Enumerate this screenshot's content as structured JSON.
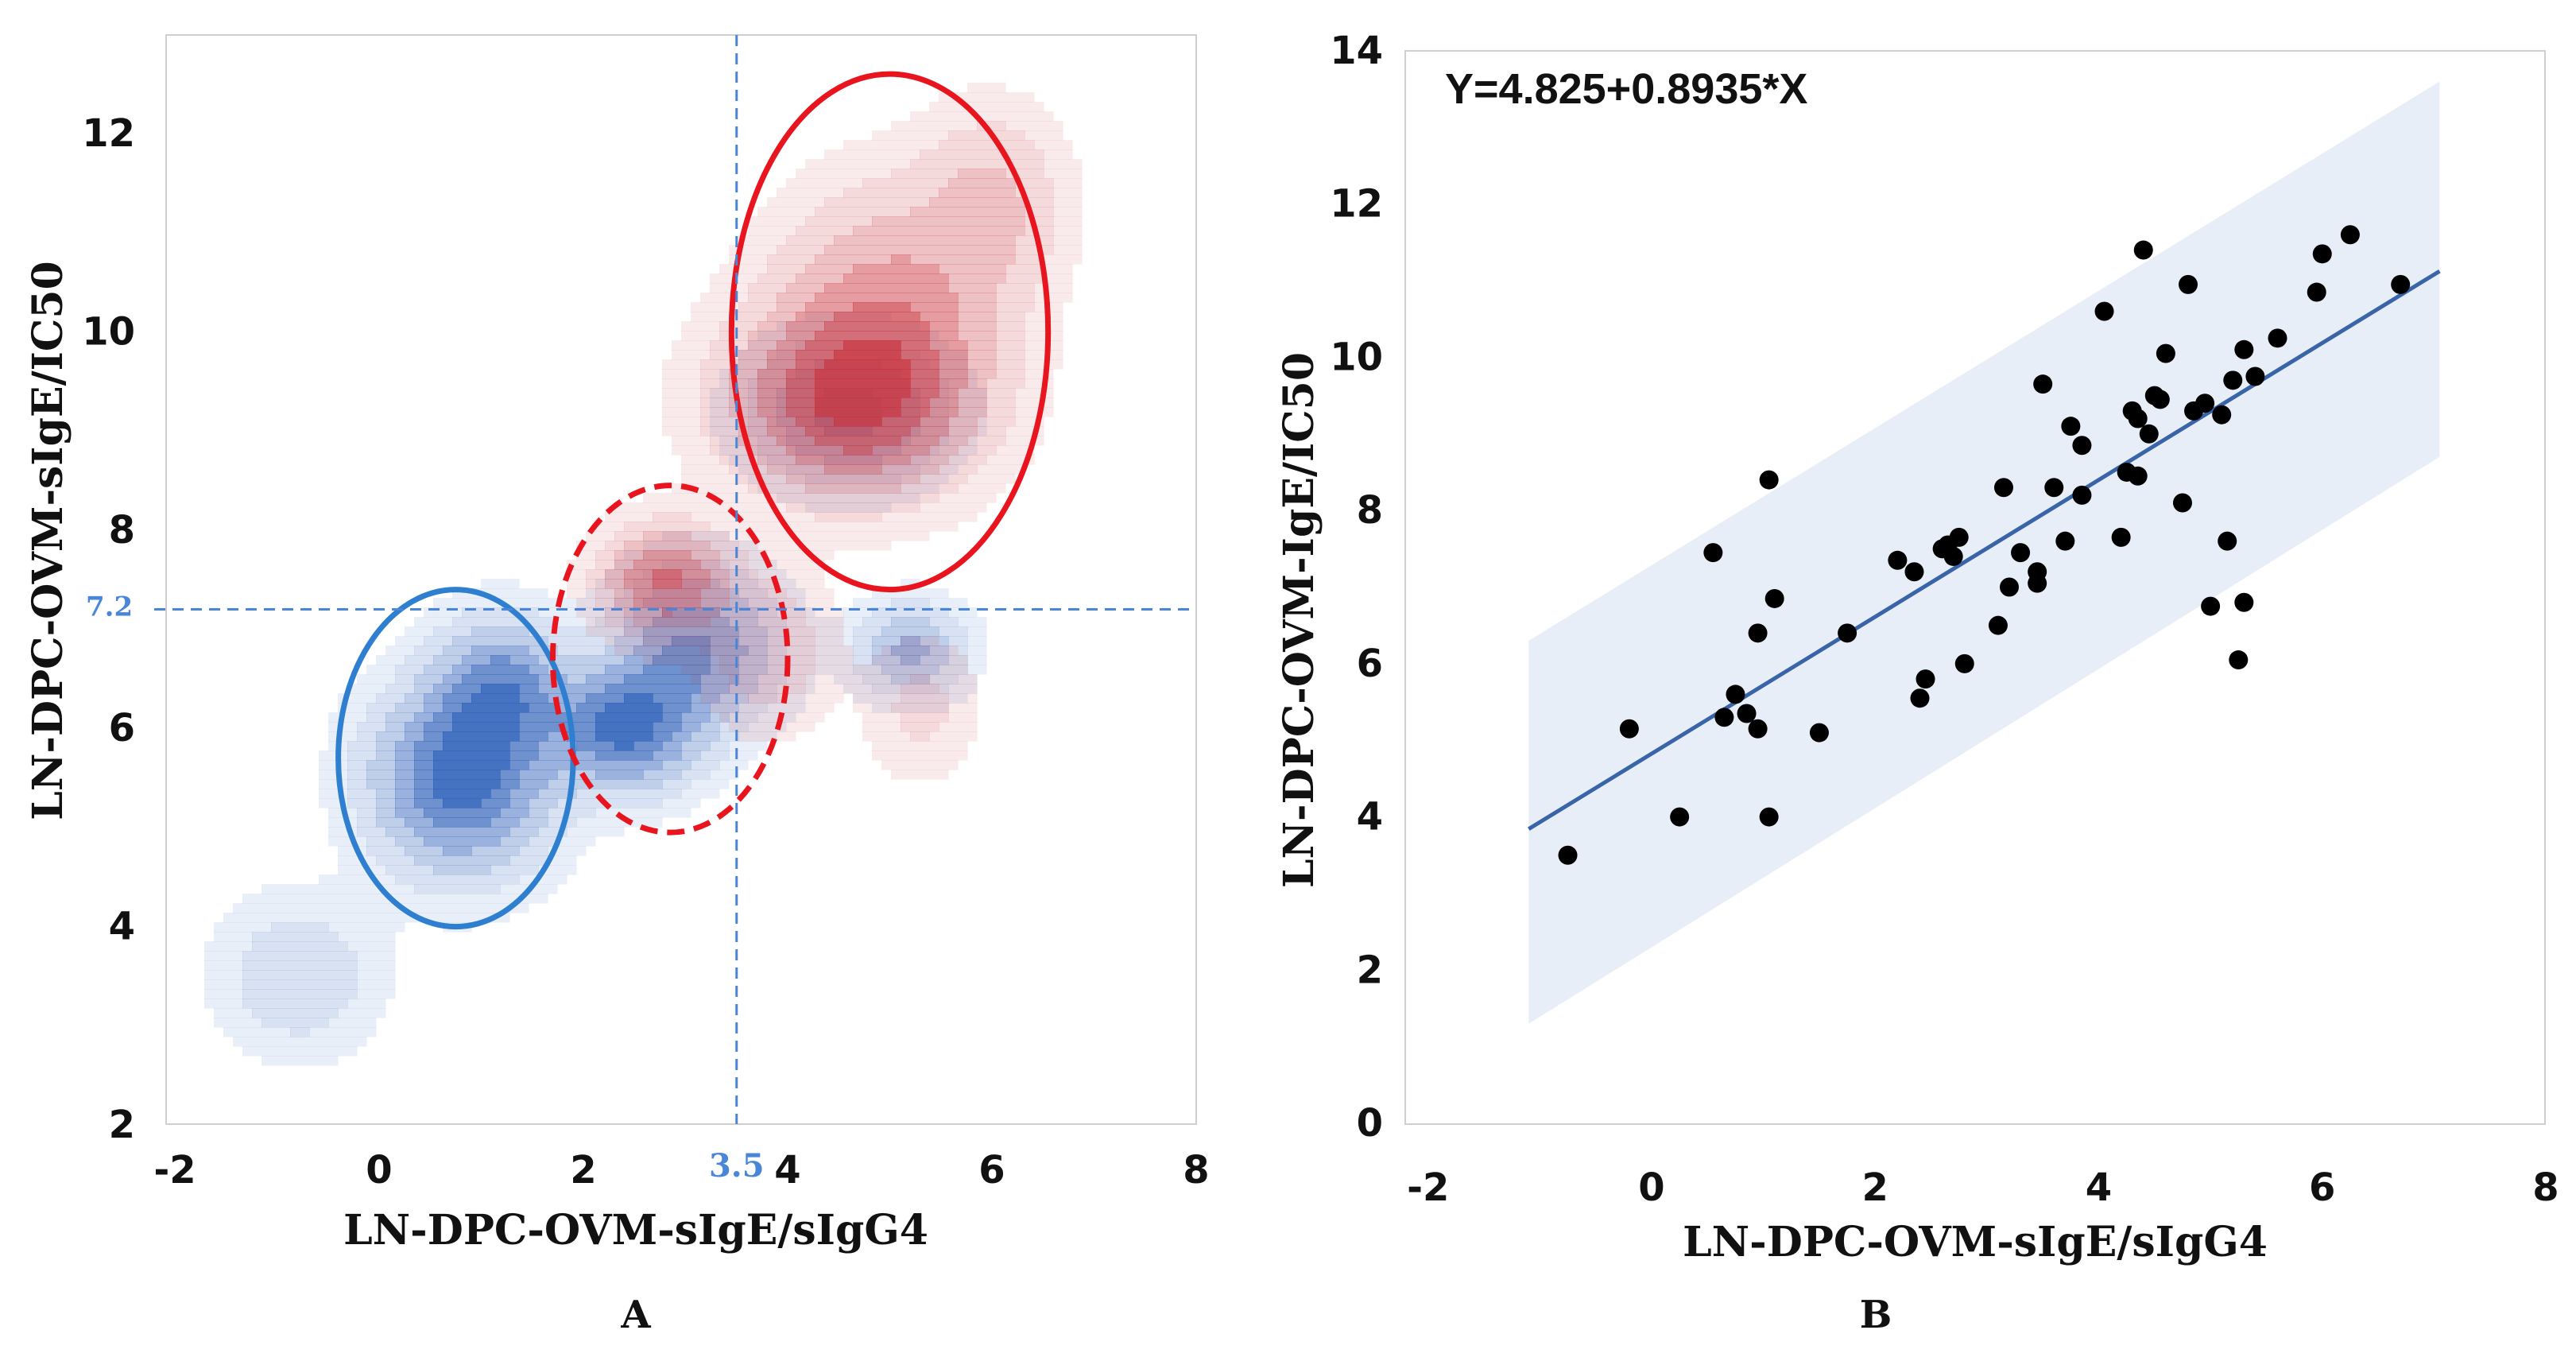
{
  "colors": {
    "blue": "#2b5fb8",
    "red": "#c8323c",
    "ref_line": "#4a86d8",
    "ci_band": "#e7eef8",
    "fit_line": "#3a64a8",
    "blue_ellipse": "#2f7fd0",
    "red_ellipse": "#e8141e"
  },
  "chart_data": [
    {
      "panel": "A",
      "type": "density_contour",
      "xlabel": "LN-DPC-OVM-sIgE/sIgG4",
      "ylabel": "LN-DPC-OVM-sIgE/IC50",
      "xlim": [
        -2,
        8
      ],
      "ylim": [
        2,
        13
      ],
      "x_ticks": [
        "-2",
        "0",
        "2",
        "4",
        "6",
        "8"
      ],
      "y_ticks": [
        "2",
        "4",
        "6",
        "8",
        "10",
        "12"
      ],
      "ref_lines": {
        "x": 3.5,
        "x_label": "3.5",
        "y": 7.2,
        "y_label": "7.2"
      },
      "series": [
        {
          "color": "blue",
          "peaks": [
            {
              "x": 0.8,
              "y": 5.5,
              "sx": 0.55,
              "sy": 0.6,
              "w": 1.0
            },
            {
              "x": 1.2,
              "y": 6.4,
              "sx": 0.4,
              "sy": 0.45,
              "w": 0.7
            },
            {
              "x": 2.4,
              "y": 6.0,
              "sx": 0.45,
              "sy": 0.4,
              "w": 0.95
            },
            {
              "x": 3.1,
              "y": 6.8,
              "sx": 0.5,
              "sy": 0.5,
              "w": 0.7
            },
            {
              "x": 4.6,
              "y": 9.2,
              "sx": 0.6,
              "sy": 0.45,
              "w": 0.55
            },
            {
              "x": 5.2,
              "y": 6.8,
              "sx": 0.35,
              "sy": 0.3,
              "w": 0.5
            },
            {
              "x": -0.8,
              "y": 3.5,
              "sx": 0.5,
              "sy": 0.5,
              "w": 0.25
            }
          ]
        },
        {
          "color": "red",
          "peaks": [
            {
              "x": 2.8,
              "y": 7.5,
              "sx": 0.4,
              "sy": 0.35,
              "w": 0.85
            },
            {
              "x": 4.6,
              "y": 9.3,
              "sx": 0.75,
              "sy": 0.6,
              "w": 1.0
            },
            {
              "x": 5.0,
              "y": 10.2,
              "sx": 0.7,
              "sy": 0.8,
              "w": 0.6
            },
            {
              "x": 6.0,
              "y": 11.3,
              "sx": 0.45,
              "sy": 0.6,
              "w": 0.35
            },
            {
              "x": 5.3,
              "y": 6.2,
              "sx": 0.35,
              "sy": 0.45,
              "w": 0.2
            },
            {
              "x": 3.8,
              "y": 6.8,
              "sx": 0.4,
              "sy": 0.5,
              "w": 0.3
            }
          ]
        }
      ],
      "ellipses": [
        {
          "color": "blue_ellipse",
          "style": "solid",
          "cx": 0.75,
          "cy": 5.7,
          "rx": 1.15,
          "ry": 1.7,
          "rot": 0
        },
        {
          "color": "red_ellipse",
          "style": "dashed",
          "cx": 2.85,
          "cy": 6.7,
          "rx": 1.15,
          "ry": 1.75,
          "rot": 0
        },
        {
          "color": "red_ellipse",
          "style": "solid",
          "cx": 5.0,
          "cy": 10.0,
          "rx": 1.55,
          "ry": 2.6,
          "rot": 0
        }
      ]
    },
    {
      "panel": "B",
      "type": "scatter",
      "equation": "Y=4.825+0.8935*X",
      "xlabel": "LN-DPC-OVM-sIgE/sIgG4",
      "ylabel": "LN-DPC-OVM-IgE/IC50",
      "xlim": [
        -2,
        8
      ],
      "ylim": [
        0,
        14
      ],
      "x_ticks": [
        "-2",
        "0",
        "2",
        "4",
        "6",
        "8"
      ],
      "y_ticks": [
        "0",
        "2",
        "4",
        "6",
        "8",
        "10",
        "12",
        "14"
      ],
      "fit": {
        "intercept": 4.825,
        "slope": 0.8935,
        "x_range": [
          -1.1,
          7.05
        ]
      },
      "band": {
        "x": [
          -1.1,
          7.05
        ],
        "lower": [
          1.3,
          8.7
        ],
        "upper": [
          6.3,
          13.6
        ]
      },
      "points": [
        [
          -0.75,
          3.5
        ],
        [
          -0.2,
          5.15
        ],
        [
          0.25,
          4.0
        ],
        [
          0.55,
          7.45
        ],
        [
          0.65,
          5.3
        ],
        [
          0.75,
          5.6
        ],
        [
          0.85,
          5.35
        ],
        [
          0.95,
          5.15
        ],
        [
          0.95,
          6.4
        ],
        [
          1.05,
          8.4
        ],
        [
          1.05,
          4.0
        ],
        [
          1.1,
          6.85
        ],
        [
          1.5,
          5.1
        ],
        [
          1.75,
          6.4
        ],
        [
          2.2,
          7.35
        ],
        [
          2.35,
          7.2
        ],
        [
          2.4,
          5.55
        ],
        [
          2.45,
          5.8
        ],
        [
          2.6,
          7.5
        ],
        [
          2.65,
          7.55
        ],
        [
          2.7,
          7.4
        ],
        [
          2.75,
          7.65
        ],
        [
          2.8,
          6.0
        ],
        [
          3.1,
          6.5
        ],
        [
          3.15,
          8.3
        ],
        [
          3.2,
          7.0
        ],
        [
          3.3,
          7.45
        ],
        [
          3.45,
          7.05
        ],
        [
          3.45,
          7.2
        ],
        [
          3.5,
          9.65
        ],
        [
          3.6,
          8.3
        ],
        [
          3.7,
          7.6
        ],
        [
          3.75,
          9.1
        ],
        [
          3.85,
          8.85
        ],
        [
          3.85,
          8.2
        ],
        [
          4.05,
          10.6
        ],
        [
          4.2,
          7.65
        ],
        [
          4.25,
          8.5
        ],
        [
          4.3,
          9.3
        ],
        [
          4.35,
          8.45
        ],
        [
          4.35,
          9.2
        ],
        [
          4.4,
          11.4
        ],
        [
          4.45,
          9.0
        ],
        [
          4.5,
          9.5
        ],
        [
          4.55,
          9.45
        ],
        [
          4.6,
          10.05
        ],
        [
          4.75,
          8.1
        ],
        [
          4.8,
          10.95
        ],
        [
          4.85,
          9.3
        ],
        [
          4.95,
          9.4
        ],
        [
          5.0,
          6.75
        ],
        [
          5.1,
          9.25
        ],
        [
          5.15,
          7.6
        ],
        [
          5.2,
          9.7
        ],
        [
          5.25,
          6.05
        ],
        [
          5.3,
          6.8
        ],
        [
          5.3,
          10.1
        ],
        [
          5.4,
          9.75
        ],
        [
          5.6,
          10.25
        ],
        [
          5.95,
          10.85
        ],
        [
          6.0,
          11.35
        ],
        [
          6.25,
          11.6
        ],
        [
          6.7,
          10.95
        ]
      ]
    }
  ],
  "panel_labels": [
    "A",
    "B"
  ]
}
